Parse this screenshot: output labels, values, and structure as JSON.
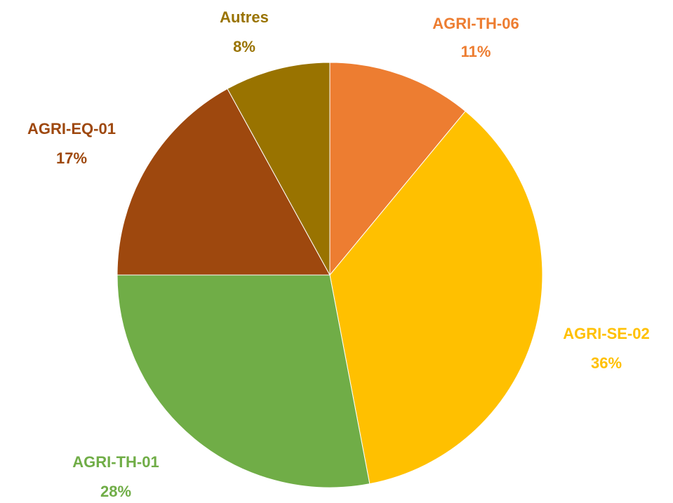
{
  "chart_data": {
    "type": "pie",
    "categories": [
      "AGRI-TH-06",
      "AGRI-SE-02",
      "AGRI-TH-01",
      "AGRI-EQ-01",
      "Autres"
    ],
    "values": [
      11,
      36,
      28,
      17,
      8
    ],
    "value_labels": [
      "11%",
      "36%",
      "28%",
      "17%",
      "8%"
    ],
    "colors": [
      "#ED7D31",
      "#FFC000",
      "#70AD47",
      "#9E480E",
      "#997300"
    ]
  }
}
